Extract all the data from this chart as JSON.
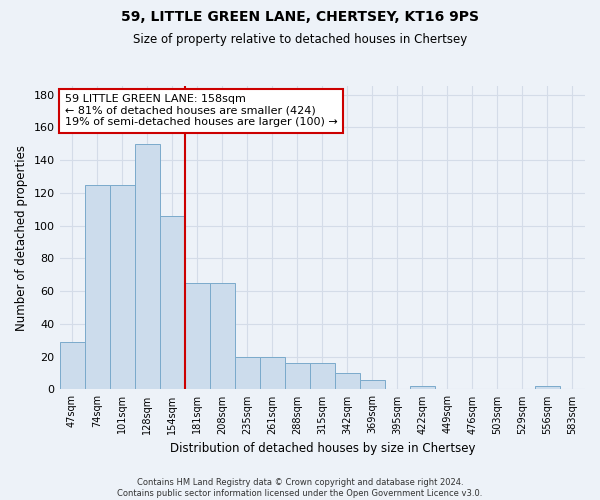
{
  "title1": "59, LITTLE GREEN LANE, CHERTSEY, KT16 9PS",
  "title2": "Size of property relative to detached houses in Chertsey",
  "xlabel": "Distribution of detached houses by size in Chertsey",
  "ylabel": "Number of detached properties",
  "bar_labels": [
    "47sqm",
    "74sqm",
    "101sqm",
    "128sqm",
    "154sqm",
    "181sqm",
    "208sqm",
    "235sqm",
    "261sqm",
    "288sqm",
    "315sqm",
    "342sqm",
    "369sqm",
    "395sqm",
    "422sqm",
    "449sqm",
    "476sqm",
    "503sqm",
    "529sqm",
    "556sqm",
    "583sqm"
  ],
  "bar_heights": [
    29,
    125,
    125,
    150,
    106,
    65,
    65,
    20,
    20,
    16,
    16,
    10,
    6,
    0,
    2,
    0,
    0,
    0,
    0,
    2,
    0
  ],
  "bar_color": "#ccdcec",
  "bar_edge_color": "#7aaacb",
  "red_line_x": 4.52,
  "annotation_text": "59 LITTLE GREEN LANE: 158sqm\n← 81% of detached houses are smaller (424)\n19% of semi-detached houses are larger (100) →",
  "annotation_box_color": "#ffffff",
  "annotation_box_edge": "#cc0000",
  "ylim": [
    0,
    185
  ],
  "yticks": [
    0,
    20,
    40,
    60,
    80,
    100,
    120,
    140,
    160,
    180
  ],
  "grid_color": "#d4dce8",
  "footnote": "Contains HM Land Registry data © Crown copyright and database right 2024.\nContains public sector information licensed under the Open Government Licence v3.0.",
  "bg_color": "#edf2f8"
}
